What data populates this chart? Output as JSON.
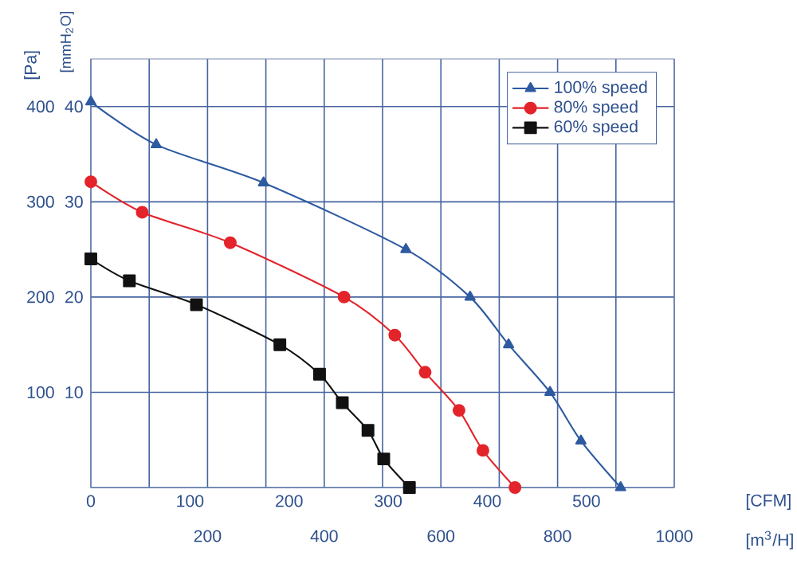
{
  "chart_data": {
    "type": "line",
    "ylabel": "[Pa]",
    "y2label": "[mmH$_{2}$O]",
    "xlabel": "[m$^{3}$/H]",
    "x2label": "[CFM]",
    "xlim": [
      0,
      1000
    ],
    "xticks": [
      {
        "value": 0,
        "label": null
      },
      {
        "value": 100,
        "label": null
      },
      200,
      {
        "value": 300,
        "label": null
      },
      400,
      {
        "value": 500,
        "label": null
      },
      600,
      {
        "value": 700,
        "label": null
      },
      800,
      {
        "value": 900,
        "label": null
      },
      1000
    ],
    "x2lim": [
      0,
      588.6
    ],
    "x2ticks": [
      0,
      100,
      200,
      300,
      400,
      500
    ],
    "ylim": [
      0,
      450
    ],
    "yticks": [
      {
        "value": 0,
        "label": null
      },
      100,
      200,
      300,
      400
    ],
    "y2lim": [
      0,
      45
    ],
    "y2ticks": [
      10,
      20,
      30,
      40
    ],
    "grid": true,
    "legend": "top right",
    "line_style": "solid",
    "series": [
      {
        "name": "100%  speed",
        "color": "#2e5aa0",
        "marker": "triangle",
        "x": [
          0,
          112,
          296,
          540,
          650,
          716,
          787,
          840,
          908
        ],
        "values": [
          405,
          360,
          320,
          250,
          200,
          150,
          100,
          49,
          0
        ]
      },
      {
        "name": "80%  speed",
        "color": "#e3242b",
        "marker": "circle",
        "x": [
          0,
          88,
          239,
          434,
          521,
          573,
          631,
          672,
          727
        ],
        "values": [
          321,
          289,
          257,
          200,
          160,
          121,
          81,
          39,
          0
        ]
      },
      {
        "name": "60%  speed",
        "color": "#111111",
        "marker": "square",
        "x": [
          0,
          66,
          181,
          324,
          392,
          431,
          475,
          502,
          546
        ],
        "values": [
          240,
          217,
          192,
          150,
          119,
          89,
          60,
          30,
          0
        ]
      }
    ]
  }
}
